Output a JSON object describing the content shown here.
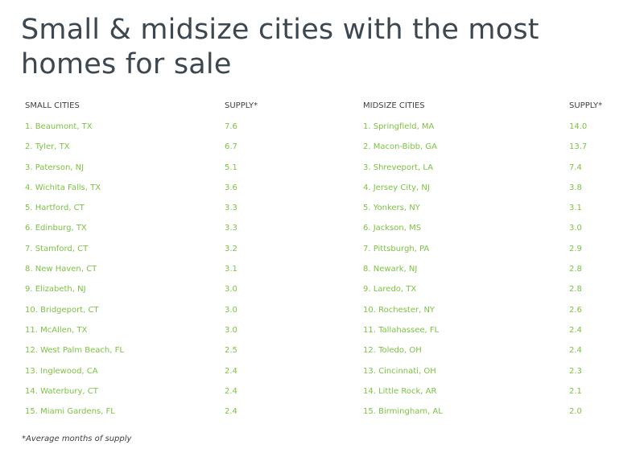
{
  "title": "Small & midsize cities with the most homes for sale",
  "small_table": {
    "header_city": "SMALL CITIES",
    "header_supply": "SUPPLY*",
    "rows": [
      {
        "city": "1. Beaumont, TX",
        "supply": "7.6"
      },
      {
        "city": "2. Tyler, TX",
        "supply": "6.7"
      },
      {
        "city": "3. Paterson, NJ",
        "supply": "5.1"
      },
      {
        "city": "4. Wichita Falls, TX",
        "supply": "3.6"
      },
      {
        "city": "5. Hartford, CT",
        "supply": "3.3"
      },
      {
        "city": "6. Edinburg, TX",
        "supply": "3.3"
      },
      {
        "city": "7. Stamford, CT",
        "supply": "3.2"
      },
      {
        "city": "8. New Haven, CT",
        "supply": "3.1"
      },
      {
        "city": "9. Elizabeth, NJ",
        "supply": "3.0"
      },
      {
        "city": "10. Bridgeport, CT",
        "supply": "3.0"
      },
      {
        "city": "11. McAllen, TX",
        "supply": "3.0"
      },
      {
        "city": "12. West Palm Beach, FL",
        "supply": "2.5"
      },
      {
        "city": "13. Inglewood, CA",
        "supply": "2.4"
      },
      {
        "city": "14. Waterbury, CT",
        "supply": "2.4"
      },
      {
        "city": "15. Miami Gardens, FL",
        "supply": "2.4"
      }
    ]
  },
  "midsize_table": {
    "header_city": "MIDSIZE CITIES",
    "header_supply": "SUPPLY*",
    "rows": [
      {
        "city": "1. Springfield, MA",
        "supply": "14.0"
      },
      {
        "city": "2. Macon-Bibb, GA",
        "supply": "13.7"
      },
      {
        "city": "3. Shreveport, LA",
        "supply": "7.4"
      },
      {
        "city": "4. Jersey City, NJ",
        "supply": "3.8"
      },
      {
        "city": "5. Yonkers, NY",
        "supply": "3.1"
      },
      {
        "city": "6. Jackson, MS",
        "supply": "3.0"
      },
      {
        "city": "7. Pittsburgh, PA",
        "supply": "2.9"
      },
      {
        "city": "8. Newark, NJ",
        "supply": "2.8"
      },
      {
        "city": "9. Laredo, TX",
        "supply": "2.8"
      },
      {
        "city": "10. Rochester, NY",
        "supply": "2.6"
      },
      {
        "city": "11. Tallahassee, FL",
        "supply": "2.4"
      },
      {
        "city": "12. Toledo, OH",
        "supply": "2.4"
      },
      {
        "city": "13. Cincinnati, OH",
        "supply": "2.3"
      },
      {
        "city": "14. Little Rock, AR",
        "supply": "2.1"
      },
      {
        "city": "15. Birmingham, AL",
        "supply": "2.0"
      }
    ]
  },
  "footnote": "*Average months of supply"
}
